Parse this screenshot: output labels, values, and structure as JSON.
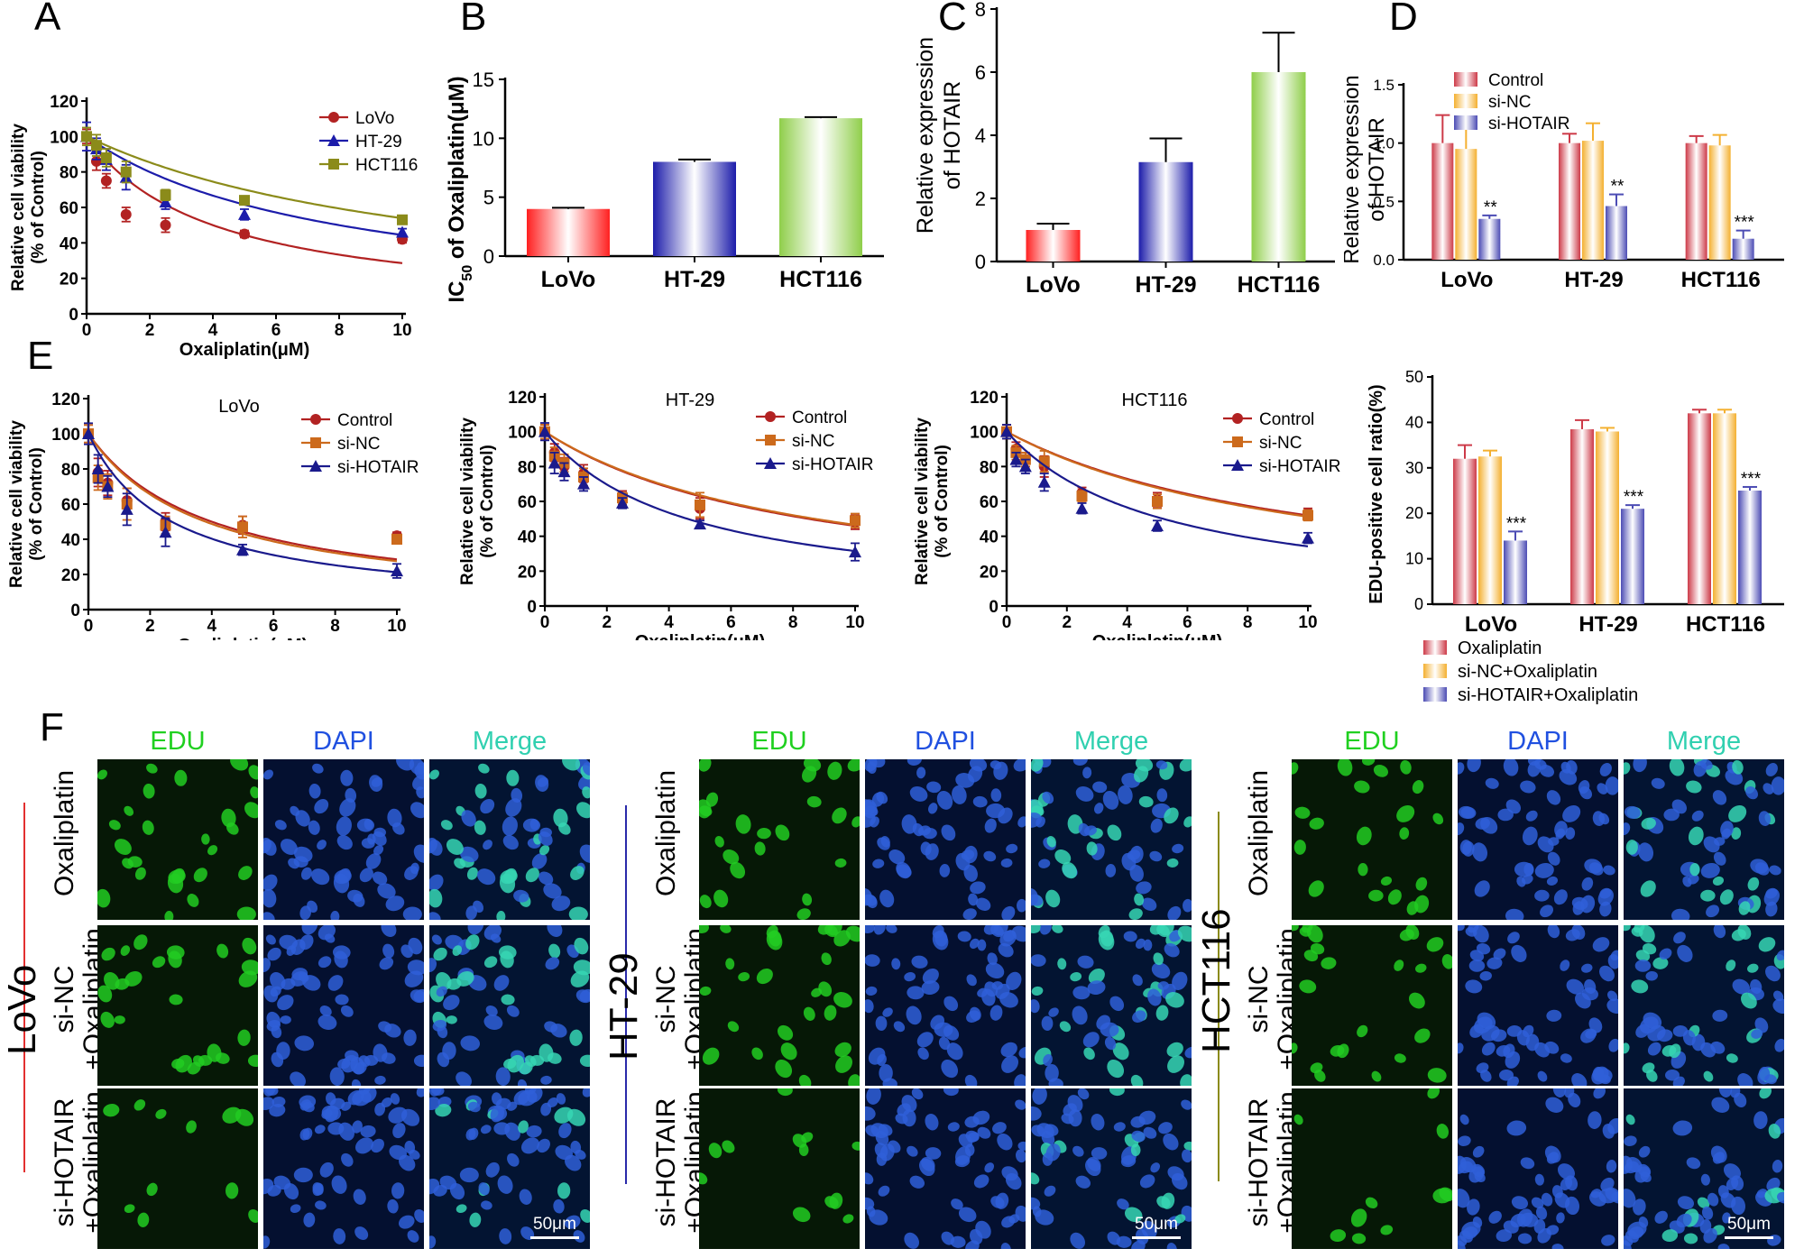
{
  "panels": {
    "A": "A",
    "B": "B",
    "C": "C",
    "D": "D",
    "E": "E",
    "F": "F"
  },
  "colors": {
    "red": "#b22222",
    "blue": "#1c1caa",
    "olive": "#8b8b1a",
    "orange": "#cc6a1c",
    "navy": "#1a1a8c"
  },
  "chart_data": [
    {
      "panel": "A",
      "type": "scatter",
      "xlabel": "Oxaliplatin(μM)",
      "ylabel": "Relative cell viability (% of Control)",
      "xlim": [
        0,
        10
      ],
      "ylim": [
        0,
        120
      ],
      "xticks": [
        0,
        2,
        4,
        6,
        8,
        10
      ],
      "yticks": [
        0,
        20,
        40,
        60,
        80,
        100,
        120
      ],
      "legend_position": "top-right",
      "series": [
        {
          "name": "LoVo",
          "color": "#b22222",
          "marker": "circle",
          "x": [
            0,
            0.3125,
            0.625,
            1.25,
            2.5,
            5,
            10
          ],
          "y": [
            100,
            86,
            75,
            56,
            50,
            45,
            42
          ],
          "err": [
            4,
            5,
            4,
            4,
            4,
            2,
            2
          ],
          "ic50": 4.0
        },
        {
          "name": "HT-29",
          "color": "#1c1caa",
          "marker": "triangle",
          "x": [
            0,
            0.3125,
            0.625,
            1.25,
            2.5,
            5,
            10
          ],
          "y": [
            100,
            93,
            87,
            77,
            63,
            56,
            46
          ],
          "err": [
            8,
            6,
            6,
            7,
            4,
            3,
            2
          ],
          "ic50": 8.0
        },
        {
          "name": "HCT116",
          "color": "#8b8b1a",
          "marker": "square",
          "x": [
            0,
            0.3125,
            0.625,
            1.25,
            2.5,
            5,
            10
          ],
          "y": [
            100,
            95,
            88,
            80,
            67,
            64,
            53
          ],
          "err": [
            5,
            6,
            5,
            6,
            3,
            2,
            2
          ],
          "ic50": 11.7
        }
      ]
    },
    {
      "panel": "B",
      "type": "bar",
      "ylabel_main": "IC",
      "ylabel_sub": "50",
      "ylabel_rest": " of Oxaliplatin(μM)",
      "categories": [
        "LoVo",
        "HT-29",
        "HCT116"
      ],
      "values": [
        4.0,
        8.0,
        11.7
      ],
      "err": [
        0.1,
        0.2,
        0.1
      ],
      "colors": [
        "#ff2020",
        "#1c1caa",
        "#8fce4a"
      ],
      "ylim": [
        0,
        15
      ],
      "yticks": [
        0,
        5,
        10,
        15
      ]
    },
    {
      "panel": "C",
      "type": "bar",
      "ylabel": "Relative expression of HOTAIR",
      "categories": [
        "LoVo",
        "HT-29",
        "HCT116"
      ],
      "values": [
        1.0,
        3.15,
        6.0
      ],
      "err": [
        0.2,
        0.75,
        1.25
      ],
      "colors": [
        "#ff2020",
        "#1c1caa",
        "#8fce4a"
      ],
      "ylim": [
        0,
        8
      ],
      "yticks": [
        0,
        2,
        4,
        6,
        8
      ]
    },
    {
      "panel": "D-top",
      "type": "bar",
      "ylabel": "Relative expression of HOTAIR",
      "categories": [
        "LoVo",
        "HT-29",
        "HCT116"
      ],
      "ylim": [
        0,
        1.5
      ],
      "yticks": [
        0.0,
        0.5,
        1.0,
        1.5
      ],
      "legend_position": "top-left",
      "series": [
        {
          "name": "Control",
          "color": "#cd3a48",
          "values": [
            1.0,
            1.0,
            1.0
          ],
          "err": [
            0.24,
            0.08,
            0.06
          ]
        },
        {
          "name": "si-NC",
          "color": "#f4b030",
          "values": [
            0.95,
            1.02,
            0.98
          ],
          "err": [
            0.19,
            0.15,
            0.09
          ]
        },
        {
          "name": "si-HOTAIR",
          "color": "#4c4cb4",
          "values": [
            0.35,
            0.46,
            0.18
          ],
          "err": [
            0.03,
            0.1,
            0.07
          ]
        }
      ],
      "annotations": [
        "**",
        "**",
        "***"
      ]
    },
    {
      "panel": "D-bottom",
      "type": "bar",
      "ylabel": "EDU-positive cell ratio(%)",
      "categories": [
        "LoVo",
        "HT-29",
        "HCT116"
      ],
      "ylim": [
        0,
        50
      ],
      "yticks": [
        0,
        10,
        20,
        30,
        40,
        50
      ],
      "legend_position": "bottom",
      "series": [
        {
          "name": "Oxaliplatin",
          "color": "#cd3a48",
          "values": [
            32,
            38.5,
            42
          ],
          "err": [
            3,
            2,
            0.8
          ]
        },
        {
          "name": "si-NC+Oxaliplatin",
          "color": "#f4b030",
          "values": [
            32.5,
            38,
            42
          ],
          "err": [
            1.3,
            0.8,
            0.8
          ]
        },
        {
          "name": "si-HOTAIR+Oxaliplatin",
          "color": "#4c4cb4",
          "values": [
            14,
            21,
            25
          ],
          "err": [
            2,
            0.8,
            0.8
          ]
        }
      ],
      "annotations": [
        "***",
        "***",
        "***"
      ]
    },
    {
      "panel": "E-LoVo",
      "type": "scatter",
      "title": "LoVo",
      "xlabel": "Oxaliplatin(μM)",
      "ylabel": "Relative cell viability (% of Control)",
      "xlim": [
        0,
        10
      ],
      "ylim": [
        0,
        120
      ],
      "xticks": [
        0,
        2,
        4,
        6,
        8,
        10
      ],
      "yticks": [
        0,
        20,
        40,
        60,
        80,
        100,
        120
      ],
      "legend_position": "top-right",
      "series": [
        {
          "name": "Control",
          "color": "#b22222",
          "marker": "circle",
          "x": [
            0,
            0.3125,
            0.625,
            1.25,
            2.5,
            5,
            10
          ],
          "y": [
            100,
            78,
            72,
            62,
            50,
            48,
            42
          ],
          "err": [
            5,
            8,
            7,
            7,
            5,
            5,
            2
          ],
          "ic50": 4.0
        },
        {
          "name": "si-NC",
          "color": "#cc6a1c",
          "marker": "square",
          "x": [
            0,
            0.3125,
            0.625,
            1.25,
            2.5,
            5,
            10
          ],
          "y": [
            100,
            75,
            70,
            60,
            48,
            47,
            40
          ],
          "err": [
            5,
            7,
            7,
            9,
            5,
            6,
            2
          ],
          "ic50": 3.8
        },
        {
          "name": "si-HOTAIR",
          "color": "#1a1a8c",
          "marker": "triangle",
          "x": [
            0,
            0.3125,
            0.625,
            1.25,
            2.5,
            5,
            10
          ],
          "y": [
            100,
            80,
            70,
            57,
            44,
            34,
            22
          ],
          "err": [
            6,
            8,
            6,
            9,
            8,
            3,
            4
          ],
          "ic50": 2.7
        }
      ]
    },
    {
      "panel": "E-HT29",
      "type": "scatter",
      "title": "HT-29",
      "xlabel": "Oxaliplatin(μM)",
      "ylabel": "Relative cell viability (% of Control)",
      "xlim": [
        0,
        10
      ],
      "ylim": [
        0,
        120
      ],
      "xticks": [
        0,
        2,
        4,
        6,
        8,
        10
      ],
      "yticks": [
        0,
        20,
        40,
        60,
        80,
        100,
        120
      ],
      "legend_position": "top-right",
      "series": [
        {
          "name": "Control",
          "color": "#b22222",
          "marker": "circle",
          "x": [
            0,
            0.3125,
            0.625,
            1.25,
            2.5,
            5,
            10
          ],
          "y": [
            100,
            88,
            80,
            76,
            62,
            56,
            48
          ],
          "err": [
            4,
            5,
            5,
            5,
            4,
            6,
            4
          ],
          "ic50": 8.5
        },
        {
          "name": "si-NC",
          "color": "#cc6a1c",
          "marker": "square",
          "x": [
            0,
            0.3125,
            0.625,
            1.25,
            2.5,
            5,
            10
          ],
          "y": [
            100,
            86,
            82,
            74,
            62,
            58,
            49
          ],
          "err": [
            4,
            5,
            5,
            5,
            3,
            7,
            4
          ],
          "ic50": 8.7
        },
        {
          "name": "si-HOTAIR",
          "color": "#1a1a8c",
          "marker": "triangle",
          "x": [
            0,
            0.3125,
            0.625,
            1.25,
            2.5,
            5,
            10
          ],
          "y": [
            100,
            82,
            77,
            70,
            59,
            47,
            31
          ],
          "err": [
            5,
            6,
            5,
            4,
            3,
            2,
            5
          ],
          "ic50": 4.6
        }
      ]
    },
    {
      "panel": "E-HCT116",
      "type": "scatter",
      "title": "HCT116",
      "xlabel": "Oxaliplatin(μM)",
      "ylabel": "Relative cell viability (% of Control)",
      "xlim": [
        0,
        10
      ],
      "ylim": [
        0,
        120
      ],
      "xticks": [
        0,
        2,
        4,
        6,
        8,
        10
      ],
      "yticks": [
        0,
        20,
        40,
        60,
        80,
        100,
        120
      ],
      "legend_position": "top-right",
      "series": [
        {
          "name": "Control",
          "color": "#b22222",
          "marker": "circle",
          "x": [
            0,
            0.3125,
            0.625,
            1.25,
            2.5,
            5,
            10
          ],
          "y": [
            100,
            90,
            84,
            80,
            65,
            61,
            53
          ],
          "err": [
            4,
            4,
            4,
            6,
            3,
            4,
            3
          ],
          "ic50": 10.8
        },
        {
          "name": "si-NC",
          "color": "#cc6a1c",
          "marker": "square",
          "x": [
            0,
            0.3125,
            0.625,
            1.25,
            2.5,
            5,
            10
          ],
          "y": [
            100,
            88,
            84,
            83,
            63,
            60,
            52
          ],
          "err": [
            4,
            4,
            4,
            6,
            3,
            4,
            3
          ],
          "ic50": 10.5
        },
        {
          "name": "si-HOTAIR",
          "color": "#1a1a8c",
          "marker": "triangle",
          "x": [
            0,
            0.3125,
            0.625,
            1.25,
            2.5,
            5,
            10
          ],
          "y": [
            100,
            84,
            80,
            71,
            56,
            46,
            39
          ],
          "err": [
            4,
            4,
            4,
            5,
            3,
            3,
            3
          ],
          "ic50": 5.2
        }
      ]
    }
  ],
  "microscopy": {
    "column_labels": [
      "EDU",
      "DAPI",
      "Merge"
    ],
    "row_labels": [
      [
        "Oxaliplatin",
        ""
      ],
      [
        "si-NC",
        "+Oxaliplatin"
      ],
      [
        "si-HOTAIR",
        "+Oxaliplatin"
      ]
    ],
    "cell_lines": [
      {
        "name": "LoVo",
        "line_color": "#e23030"
      },
      {
        "name": "HT-29",
        "line_color": "#2a2aaa"
      },
      {
        "name": "HCT116",
        "line_color": "#8b8b1a"
      }
    ],
    "scale_bar": "50μm",
    "channel_colors": {
      "EDU": "#20d020",
      "DAPI": "#2050e0",
      "Merge": "#30d0b0"
    }
  }
}
